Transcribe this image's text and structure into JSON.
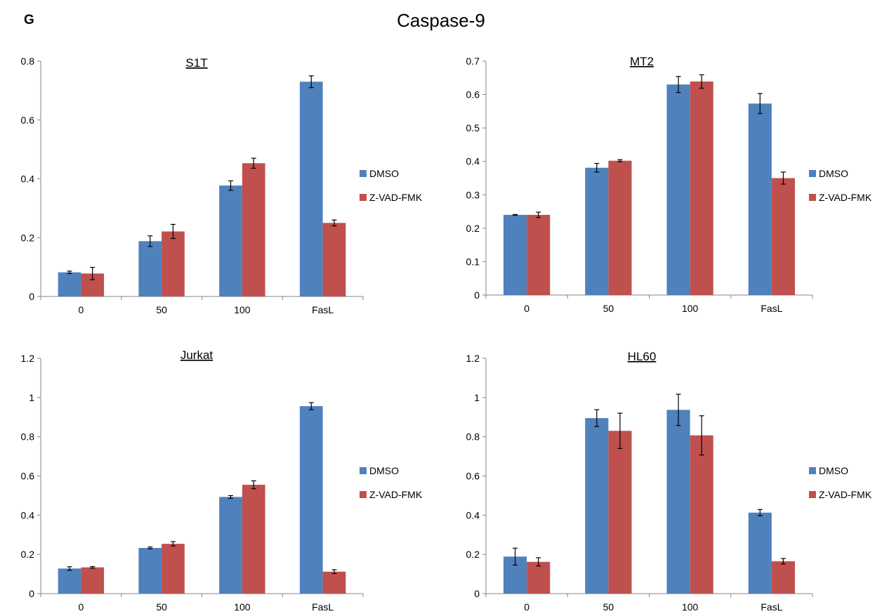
{
  "figure": {
    "panel_label": "G",
    "title": "Caspase-9"
  },
  "colors": {
    "DMSO": "#4F81BD",
    "Z-VAD-FMK": "#C0504D"
  },
  "chart_data": [
    {
      "type": "bar",
      "title": "S1T",
      "categories": [
        "0",
        "50",
        "100",
        "FasL"
      ],
      "ylim": [
        0,
        0.8
      ],
      "yticks": [
        0,
        0.2,
        0.4,
        0.6,
        0.8
      ],
      "ytick_labels": [
        "0",
        "0.2",
        "0.4",
        "0.6",
        "0.8"
      ],
      "legend_position": "right",
      "series": [
        {
          "name": "DMSO",
          "values": [
            0.082,
            0.188,
            0.377,
            0.73
          ],
          "errors": [
            0.004,
            0.018,
            0.016,
            0.02
          ]
        },
        {
          "name": "Z-VAD-FMK",
          "values": [
            0.078,
            0.221,
            0.453,
            0.25
          ],
          "errors": [
            0.021,
            0.024,
            0.017,
            0.01
          ]
        }
      ]
    },
    {
      "type": "bar",
      "title": "MT2",
      "categories": [
        "0",
        "50",
        "100",
        "FasL"
      ],
      "ylim": [
        0,
        0.7
      ],
      "yticks": [
        0,
        0.1,
        0.2,
        0.3,
        0.4,
        0.5,
        0.6,
        0.7
      ],
      "ytick_labels": [
        "0",
        "0.1",
        "0.2",
        "0.3",
        "0.4",
        "0.5",
        "0.6",
        "0.7"
      ],
      "legend_position": "right",
      "series": [
        {
          "name": "DMSO",
          "values": [
            0.24,
            0.381,
            0.63,
            0.573
          ],
          "errors": [
            0.001,
            0.013,
            0.024,
            0.03
          ]
        },
        {
          "name": "Z-VAD-FMK",
          "values": [
            0.24,
            0.402,
            0.639,
            0.35
          ],
          "errors": [
            0.008,
            0.003,
            0.02,
            0.018
          ]
        }
      ]
    },
    {
      "type": "bar",
      "title": "Jurkat",
      "categories": [
        "0",
        "50",
        "100",
        "FasL"
      ],
      "ylim": [
        0,
        1.2
      ],
      "yticks": [
        0,
        0.2,
        0.4,
        0.6,
        0.8,
        1.0,
        1.2
      ],
      "ytick_labels": [
        "0",
        "0.2",
        "0.4",
        "0.6",
        "0.8",
        "1",
        "1.2"
      ],
      "legend_position": "right",
      "series": [
        {
          "name": "DMSO",
          "values": [
            0.128,
            0.233,
            0.493,
            0.956
          ],
          "errors": [
            0.009,
            0.005,
            0.007,
            0.018
          ]
        },
        {
          "name": "Z-VAD-FMK",
          "values": [
            0.134,
            0.254,
            0.555,
            0.112
          ],
          "errors": [
            0.004,
            0.011,
            0.02,
            0.01
          ]
        }
      ]
    },
    {
      "type": "bar",
      "title": "HL60",
      "categories": [
        "0",
        "50",
        "100",
        "FasL"
      ],
      "ylim": [
        0,
        1.2
      ],
      "yticks": [
        0,
        0.2,
        0.4,
        0.6,
        0.8,
        1.0,
        1.2
      ],
      "ytick_labels": [
        "0",
        "0.2",
        "0.4",
        "0.6",
        "0.8",
        "1",
        "1.2"
      ],
      "legend_position": "right",
      "series": [
        {
          "name": "DMSO",
          "values": [
            0.189,
            0.895,
            0.937,
            0.413
          ],
          "errors": [
            0.043,
            0.043,
            0.08,
            0.016
          ]
        },
        {
          "name": "Z-VAD-FMK",
          "values": [
            0.162,
            0.83,
            0.807,
            0.165
          ],
          "errors": [
            0.021,
            0.09,
            0.1,
            0.014
          ]
        }
      ]
    }
  ]
}
